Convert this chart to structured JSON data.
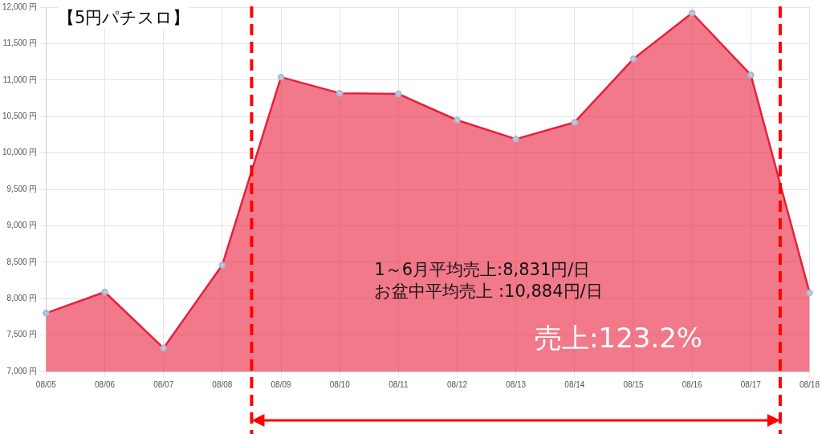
{
  "chart_data": {
    "type": "area",
    "title": "【5円パチスロ】",
    "categories": [
      "08/05",
      "08/06",
      "08/07",
      "08/08",
      "08/09",
      "08/10",
      "08/11",
      "08/12",
      "08/13",
      "08/14",
      "08/15",
      "08/16",
      "08/17",
      "08/18"
    ],
    "series": [
      {
        "color": "#e8203c",
        "values": [
          7800,
          8090,
          7320,
          8460,
          11040,
          10820,
          10810,
          10450,
          10190,
          10420,
          11290,
          11920,
          11070,
          8080
        ]
      }
    ],
    "ylim": [
      7000,
      12000
    ],
    "yticks": [
      {
        "value": 7000,
        "label": "7,000 円"
      },
      {
        "value": 7500,
        "label": "7,500 円"
      },
      {
        "value": 8000,
        "label": "8,000 円"
      },
      {
        "value": 8500,
        "label": "8,500 円"
      },
      {
        "value": 9000,
        "label": "9,000 円"
      },
      {
        "value": 9500,
        "label": "9,500 円"
      },
      {
        "value": 10000,
        "label": "10,000 円"
      },
      {
        "value": 10500,
        "label": "10,500 円"
      },
      {
        "value": 11000,
        "label": "11,000 円"
      },
      {
        "value": 11500,
        "label": "11,500 円"
      },
      {
        "value": 12000,
        "label": "12,000 円"
      }
    ],
    "annotations": [
      "1～6月平均売上:8,831円/日",
      "お盆中平均売上 :10,884円/日",
      "売上:123.2%"
    ],
    "grid": true,
    "legend": false,
    "marker": "circle",
    "line_style": "solid"
  }
}
